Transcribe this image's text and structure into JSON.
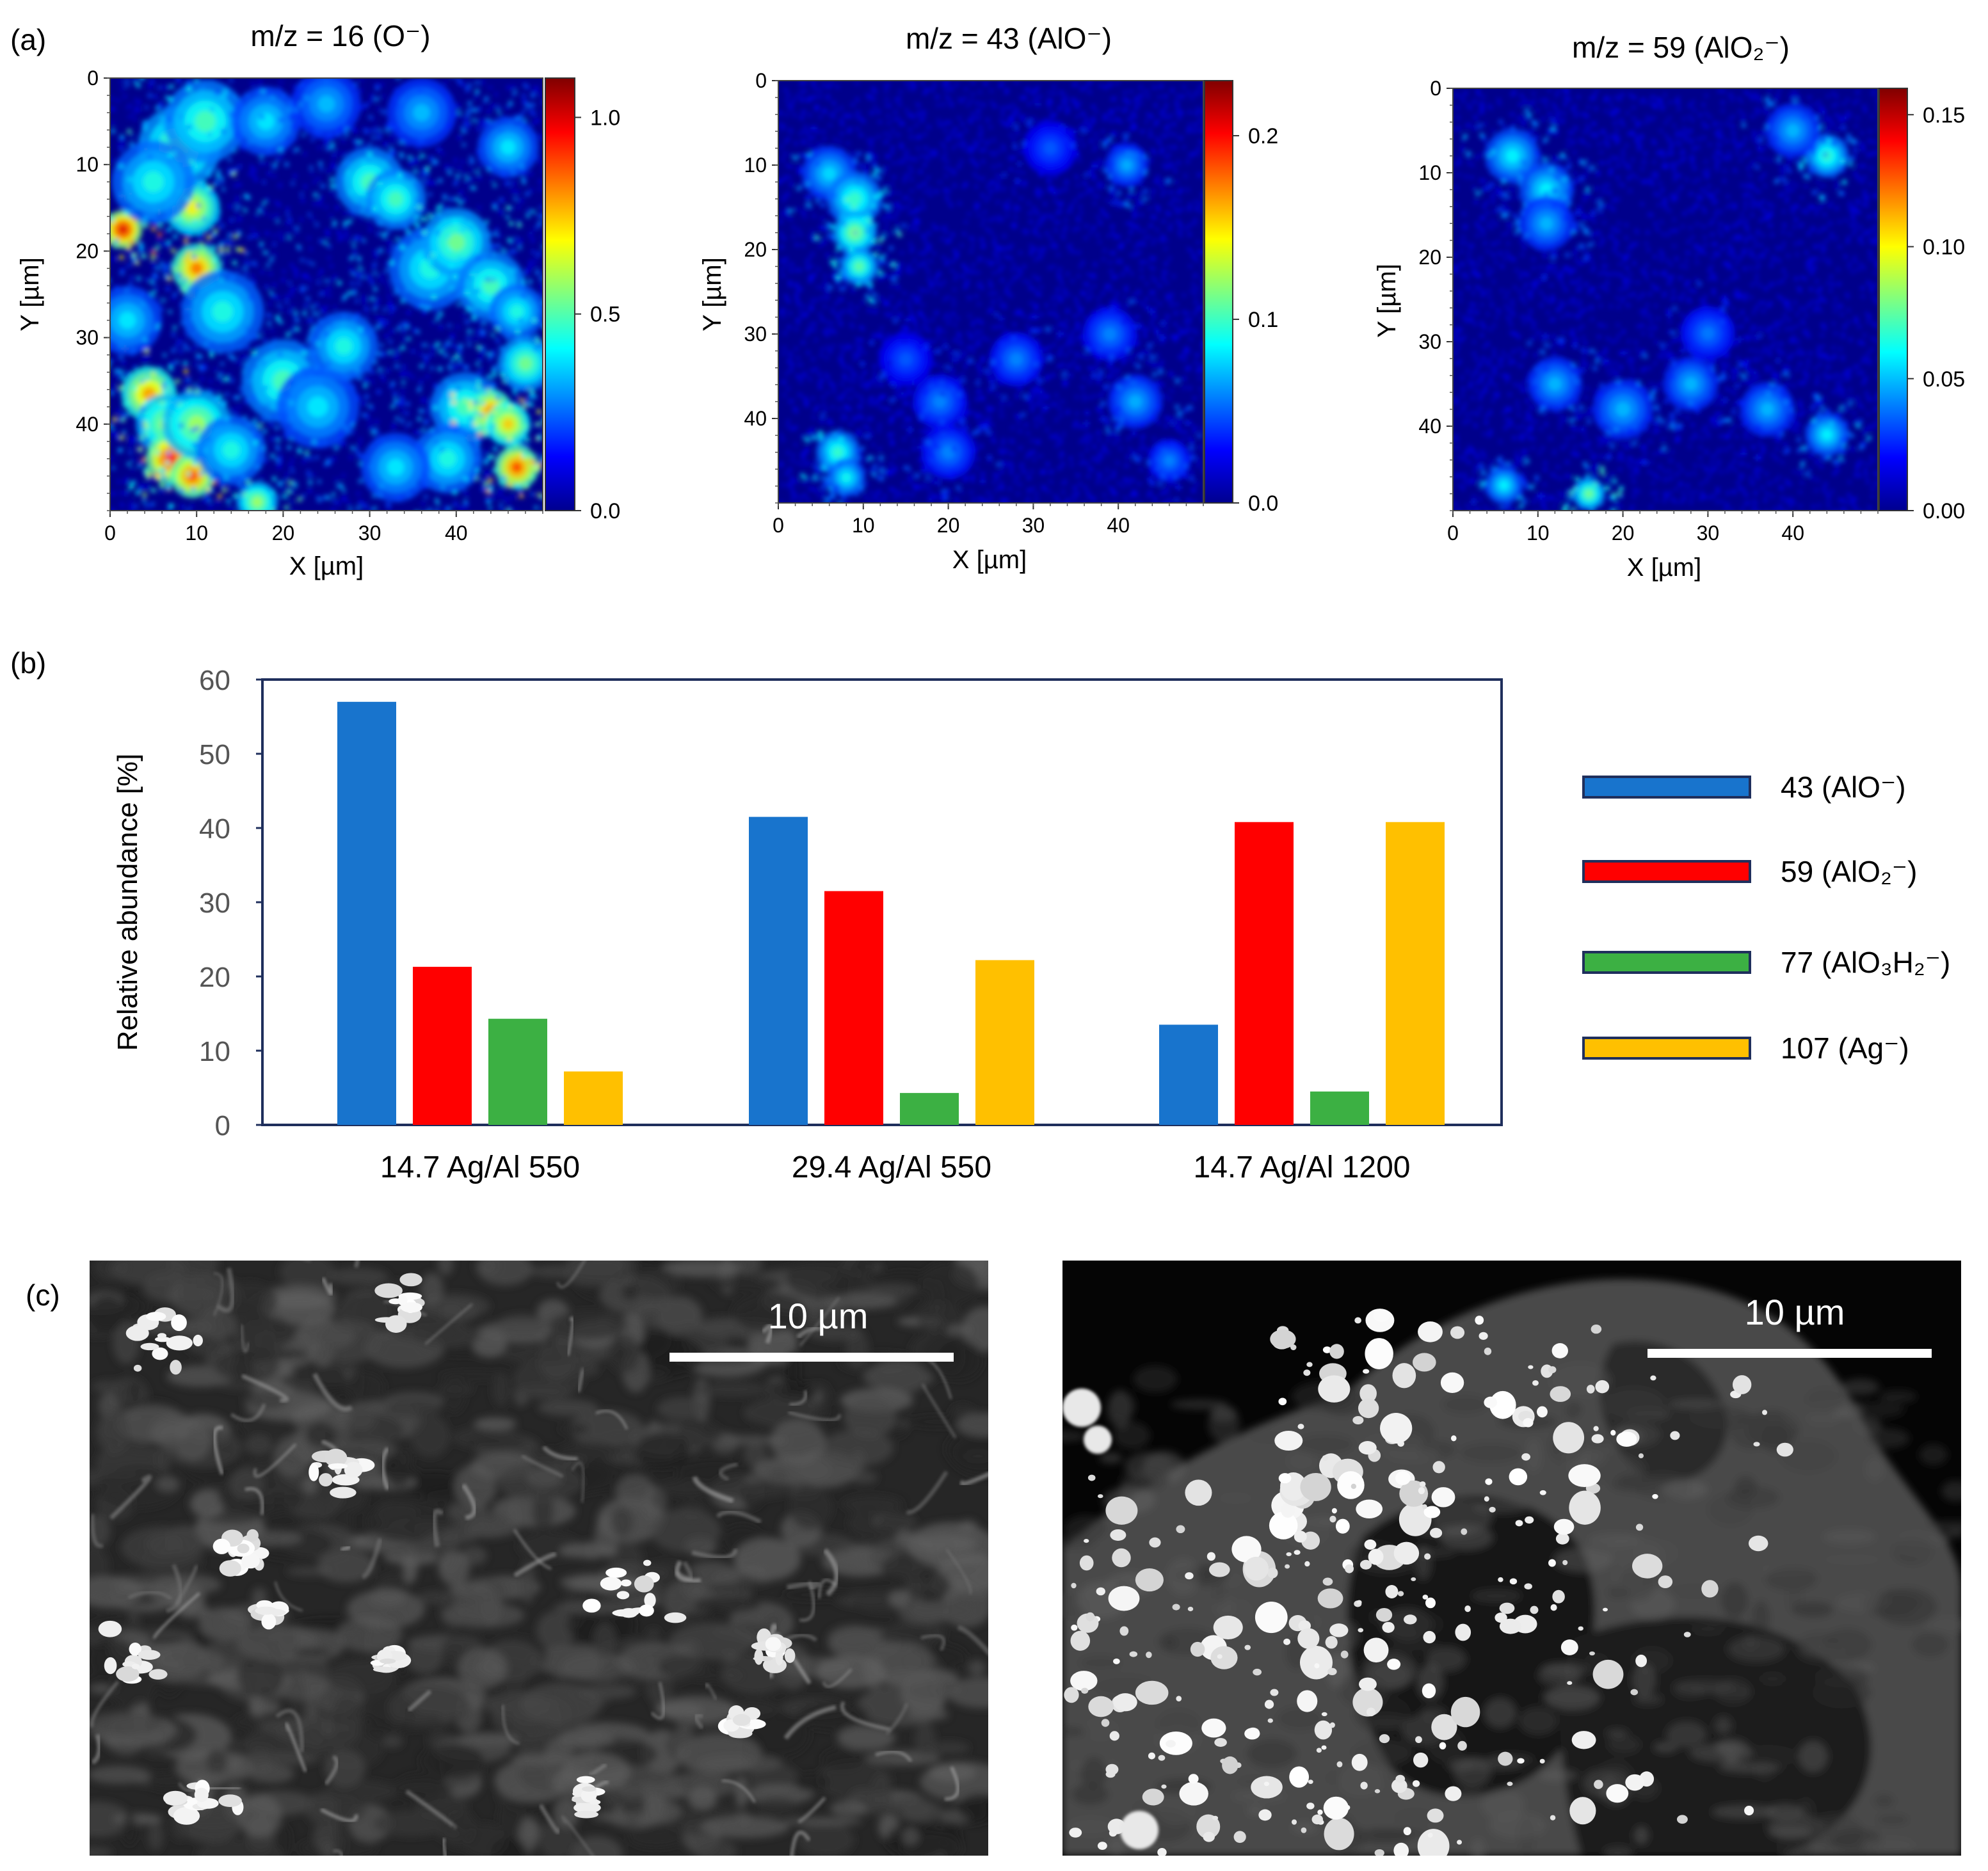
{
  "panel_labels": {
    "a": "(a)",
    "b": "(b)",
    "c": "(c)"
  },
  "colors": {
    "blue": "#1874cd",
    "red": "#ff0000",
    "green": "#3cb043",
    "yellow": "#ffc000",
    "frame": "#1f2f5c",
    "map_background": "#00008b"
  },
  "chart_data": [
    {
      "type": "heatmap",
      "title": "m/z = 16 (O⁻)",
      "xlabel": "X [µm]",
      "ylabel": "Y [µm]",
      "xticks": [
        "0",
        "10",
        "20",
        "30",
        "40"
      ],
      "yticks": [
        "0",
        "10",
        "20",
        "30",
        "40"
      ],
      "xlim": [
        0,
        50
      ],
      "ylim": [
        0,
        50
      ],
      "colorbar_ticks": [
        "1.0",
        "0.5",
        "0.0"
      ],
      "colorbar_values": [
        1.0,
        0.5,
        0.0
      ],
      "colorbar_max": 1.1,
      "colormap": "jet",
      "hotspots": [
        {
          "x": 1.5,
          "y": 17.5,
          "r": 1.4,
          "v": 1.0
        },
        {
          "x": 7.5,
          "y": 11,
          "r": 1.5,
          "v": 0.9
        },
        {
          "x": 9.5,
          "y": 15,
          "r": 2.0,
          "v": 0.7
        },
        {
          "x": 10,
          "y": 22,
          "r": 1.8,
          "v": 0.85
        },
        {
          "x": 8,
          "y": 8,
          "r": 3,
          "v": 0.55
        },
        {
          "x": 11,
          "y": 5,
          "r": 3,
          "v": 0.5
        },
        {
          "x": 5,
          "y": 12,
          "r": 3,
          "v": 0.45
        },
        {
          "x": 13,
          "y": 27,
          "r": 3,
          "v": 0.45
        },
        {
          "x": 4.5,
          "y": 36.5,
          "r": 2.0,
          "v": 0.8
        },
        {
          "x": 6.5,
          "y": 40,
          "r": 2.2,
          "v": 0.6
        },
        {
          "x": 7,
          "y": 44,
          "r": 1.8,
          "v": 0.95
        },
        {
          "x": 9.5,
          "y": 46,
          "r": 1.6,
          "v": 0.9
        },
        {
          "x": 10,
          "y": 40,
          "r": 2.5,
          "v": 0.6
        },
        {
          "x": 17,
          "y": 49,
          "r": 1.5,
          "v": 0.6
        },
        {
          "x": 20,
          "y": 35,
          "r": 3,
          "v": 0.5
        },
        {
          "x": 24,
          "y": 38,
          "r": 3,
          "v": 0.4
        },
        {
          "x": 27,
          "y": 31,
          "r": 2.5,
          "v": 0.45
        },
        {
          "x": 30,
          "y": 12,
          "r": 2.5,
          "v": 0.5
        },
        {
          "x": 33,
          "y": 14,
          "r": 2.2,
          "v": 0.5
        },
        {
          "x": 37,
          "y": 22,
          "r": 3,
          "v": 0.45
        },
        {
          "x": 40,
          "y": 19,
          "r": 2.5,
          "v": 0.55
        },
        {
          "x": 44,
          "y": 24,
          "r": 2.5,
          "v": 0.5
        },
        {
          "x": 47,
          "y": 27,
          "r": 2,
          "v": 0.45
        },
        {
          "x": 41,
          "y": 38,
          "r": 2.5,
          "v": 0.5
        },
        {
          "x": 44,
          "y": 38.5,
          "r": 1.6,
          "v": 0.85
        },
        {
          "x": 46,
          "y": 40,
          "r": 1.6,
          "v": 0.75
        },
        {
          "x": 47,
          "y": 45,
          "r": 1.6,
          "v": 0.9
        },
        {
          "x": 39,
          "y": 44,
          "r": 2.5,
          "v": 0.45
        },
        {
          "x": 33,
          "y": 45,
          "r": 2.5,
          "v": 0.4
        },
        {
          "x": 48,
          "y": 33,
          "r": 2,
          "v": 0.55
        },
        {
          "x": 18,
          "y": 5,
          "r": 2.5,
          "v": 0.4
        },
        {
          "x": 25,
          "y": 3,
          "r": 2.5,
          "v": 0.35
        },
        {
          "x": 36,
          "y": 4,
          "r": 2.5,
          "v": 0.35
        },
        {
          "x": 46,
          "y": 8,
          "r": 2.2,
          "v": 0.4
        },
        {
          "x": 2,
          "y": 28,
          "r": 2.5,
          "v": 0.4
        },
        {
          "x": 14,
          "y": 43,
          "r": 2.5,
          "v": 0.45
        }
      ],
      "speckle": {
        "count": 2500,
        "scale": 0.28,
        "seed": 11
      }
    },
    {
      "type": "heatmap",
      "title": "m/z = 43 (AlO⁻)",
      "xlabel": "X [µm]",
      "ylabel": "Y [µm]",
      "xticks": [
        "0",
        "10",
        "20",
        "30",
        "40"
      ],
      "yticks": [
        "0",
        "10",
        "20",
        "30",
        "40"
      ],
      "xlim": [
        0,
        50
      ],
      "ylim": [
        0,
        50
      ],
      "colorbar_ticks": [
        "0.2",
        "0.1",
        "0.0"
      ],
      "colorbar_values": [
        0.2,
        0.1,
        0.0
      ],
      "colorbar_max": 0.23,
      "colormap": "jet",
      "hotspots": [
        {
          "x": 6,
          "y": 11,
          "r": 2,
          "v": 0.08
        },
        {
          "x": 9,
          "y": 14,
          "r": 2,
          "v": 0.1
        },
        {
          "x": 9,
          "y": 18,
          "r": 1.6,
          "v": 0.12
        },
        {
          "x": 9.5,
          "y": 22,
          "r": 1.4,
          "v": 0.11
        },
        {
          "x": 7,
          "y": 44,
          "r": 1.6,
          "v": 0.1
        },
        {
          "x": 8,
          "y": 47,
          "r": 1.4,
          "v": 0.09
        },
        {
          "x": 20,
          "y": 44,
          "r": 2,
          "v": 0.06
        },
        {
          "x": 19,
          "y": 38,
          "r": 2,
          "v": 0.06
        },
        {
          "x": 28,
          "y": 33,
          "r": 2,
          "v": 0.06
        },
        {
          "x": 39,
          "y": 30,
          "r": 2,
          "v": 0.06
        },
        {
          "x": 42,
          "y": 38,
          "r": 2,
          "v": 0.07
        },
        {
          "x": 46,
          "y": 45,
          "r": 1.6,
          "v": 0.06
        },
        {
          "x": 41,
          "y": 10,
          "r": 1.6,
          "v": 0.07
        },
        {
          "x": 32,
          "y": 8,
          "r": 2,
          "v": 0.05
        },
        {
          "x": 15,
          "y": 33,
          "r": 2,
          "v": 0.05
        }
      ],
      "speckle": {
        "count": 3000,
        "scale": 0.06,
        "seed": 23
      }
    },
    {
      "type": "heatmap",
      "title": "m/z = 59 (AlO₂⁻)",
      "xlabel": "X [µm]",
      "ylabel": "Y [µm]",
      "xticks": [
        "0",
        "10",
        "20",
        "30",
        "40"
      ],
      "yticks": [
        "0",
        "10",
        "20",
        "30",
        "40"
      ],
      "xlim": [
        0,
        50
      ],
      "ylim": [
        0,
        50
      ],
      "colorbar_ticks": [
        "0.15",
        "0.10",
        "0.05",
        "0.00"
      ],
      "colorbar_values": [
        0.15,
        0.1,
        0.05,
        0.0
      ],
      "colorbar_max": 0.16,
      "colormap": "jet",
      "hotspots": [
        {
          "x": 7,
          "y": 8,
          "r": 2,
          "v": 0.06
        },
        {
          "x": 11,
          "y": 12,
          "r": 2,
          "v": 0.06
        },
        {
          "x": 11,
          "y": 16,
          "r": 2,
          "v": 0.05
        },
        {
          "x": 16,
          "y": 48,
          "r": 1.2,
          "v": 0.08
        },
        {
          "x": 6,
          "y": 47,
          "r": 1.4,
          "v": 0.06
        },
        {
          "x": 12,
          "y": 35,
          "r": 2,
          "v": 0.05
        },
        {
          "x": 20,
          "y": 38,
          "r": 2.2,
          "v": 0.05
        },
        {
          "x": 28,
          "y": 35,
          "r": 2,
          "v": 0.05
        },
        {
          "x": 37,
          "y": 38,
          "r": 2,
          "v": 0.05
        },
        {
          "x": 44,
          "y": 8,
          "r": 1.6,
          "v": 0.07
        },
        {
          "x": 40,
          "y": 5,
          "r": 2,
          "v": 0.05
        },
        {
          "x": 44,
          "y": 41,
          "r": 1.6,
          "v": 0.06
        },
        {
          "x": 30,
          "y": 29,
          "r": 2,
          "v": 0.04
        }
      ],
      "speckle": {
        "count": 3000,
        "scale": 0.045,
        "seed": 37
      }
    },
    {
      "type": "bar",
      "categories": [
        "14.7 Ag/Al 550",
        "29.4 Ag/Al 550",
        "14.7 Ag/Al 1200"
      ],
      "series": [
        {
          "name": "43 (AlO⁻)",
          "values": [
            57,
            41.5,
            13.5
          ],
          "color": "#1874cd"
        },
        {
          "name": "59 (AlO₂⁻)",
          "values": [
            21.3,
            31.5,
            40.8
          ],
          "color": "#ff0000"
        },
        {
          "name": "77 (AlO₃H₂⁻)",
          "values": [
            14.3,
            4.3,
            4.5
          ],
          "color": "#3cb043"
        },
        {
          "name": "107 (Ag⁻)",
          "values": [
            7.2,
            22.2,
            40.8
          ],
          "color": "#ffc000"
        }
      ],
      "xlabel": "",
      "ylabel": "Relative abundance [%]",
      "ylim": [
        0,
        60
      ],
      "yticks": [
        "0",
        "10",
        "20",
        "30",
        "40",
        "50",
        "60"
      ],
      "legend": "right"
    }
  ],
  "sem_images": [
    {
      "scale_label": "10 µm",
      "style": "flakes",
      "seed": 101
    },
    {
      "scale_label": "10 µm",
      "style": "particles",
      "seed": 202
    }
  ]
}
